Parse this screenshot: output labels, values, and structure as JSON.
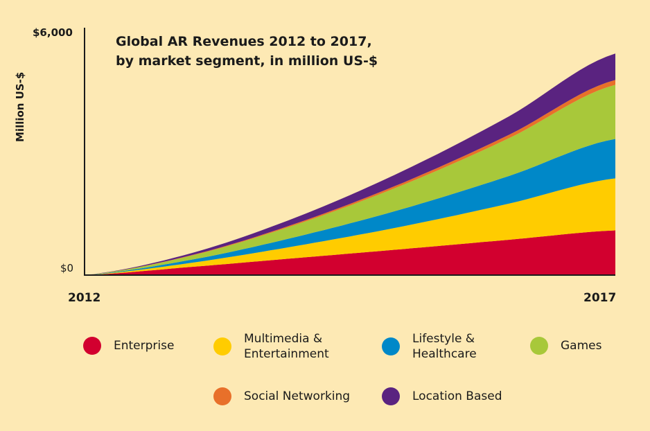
{
  "chart_data": {
    "type": "area",
    "stacked": true,
    "title": "Global AR Revenues 2012 to 2017, by market segment, in million US-$",
    "title_lines": [
      "Global AR Revenues 2012 to 2017,",
      "by market segment, in million US-$"
    ],
    "ylabel": "Million US-$",
    "xlabel": "",
    "x": [
      2012,
      2013,
      2014,
      2015,
      2016,
      2017
    ],
    "x_tick_labels": [
      "2012",
      "2017"
    ],
    "y_tick_labels": [
      "$0",
      "$6,000"
    ],
    "ylim": [
      0,
      6000
    ],
    "grid": false,
    "legend_placement": "bottom",
    "series": [
      {
        "name": "Enterprise",
        "color": "#d2002f",
        "values": [
          0,
          200,
          420,
          640,
          870,
          1100
        ]
      },
      {
        "name": "Multimedia & Entertainment",
        "name_lines": [
          "Multimedia &",
          "Entertainment"
        ],
        "color": "#ffcc00",
        "values": [
          0,
          100,
          300,
          560,
          890,
          1280
        ]
      },
      {
        "name": "Lifestyle & Healthcare",
        "name_lines": [
          "Lifestyle &",
          "Healthcare"
        ],
        "color": "#0088c8",
        "values": [
          0,
          75,
          225,
          430,
          680,
          970
        ]
      },
      {
        "name": "Games",
        "color": "#a8c83a",
        "values": [
          0,
          100,
          305,
          590,
          930,
          1330
        ]
      },
      {
        "name": "Social Networking",
        "color": "#e8702a",
        "values": [
          0,
          10,
          28,
          53,
          84,
          120
        ]
      },
      {
        "name": "Location Based",
        "color": "#5a2380",
        "values": [
          0,
          50,
          150,
          290,
          455,
          650
        ]
      }
    ]
  }
}
